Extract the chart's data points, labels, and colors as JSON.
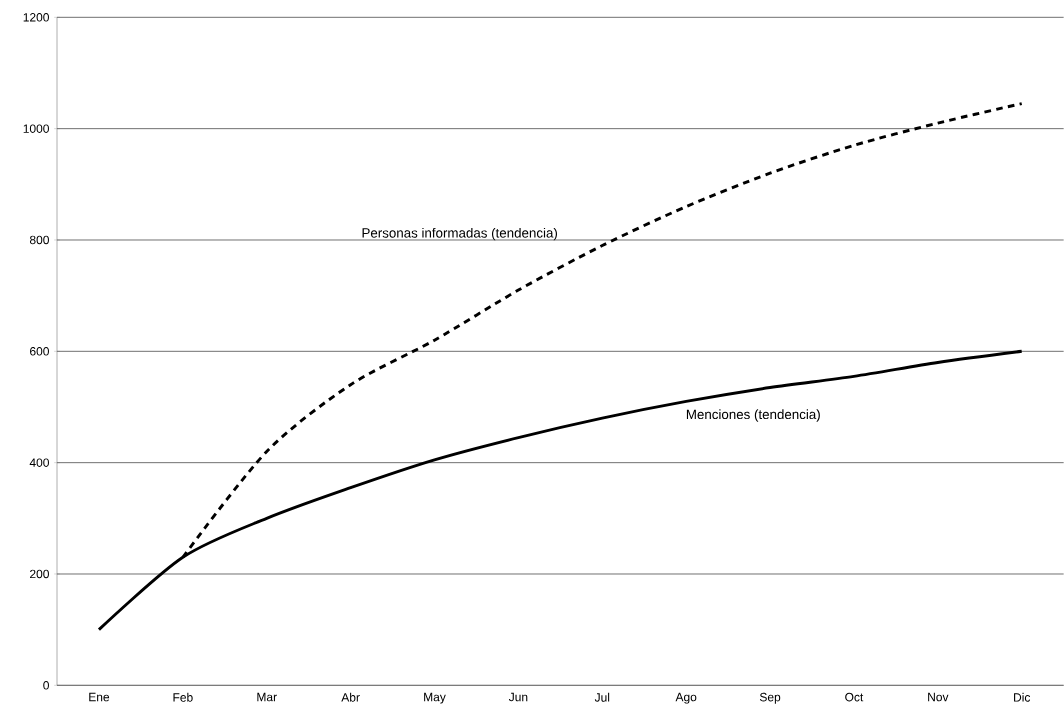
{
  "chart_data": {
    "type": "line",
    "categories": [
      "Ene",
      "Feb",
      "Mar",
      "Abr",
      "May",
      "Jun",
      "Jul",
      "Ago",
      "Sep",
      "Oct",
      "Nov",
      "Dic"
    ],
    "series": [
      {
        "name": "Personas informadas (tendencia)",
        "color": "#000000",
        "line_style": "dashed",
        "values": [
          null,
          230,
          420,
          540,
          620,
          710,
          790,
          860,
          920,
          970,
          1010,
          1045
        ]
      },
      {
        "name": "Menciones (tendencia)",
        "color": "#000000",
        "line_style": "solid",
        "values": [
          100,
          230,
          300,
          355,
          405,
          445,
          480,
          510,
          535,
          555,
          580,
          600
        ]
      }
    ],
    "ylim": [
      0,
      1200
    ],
    "yticks": [
      0,
      200,
      400,
      600,
      800,
      1000,
      1200
    ],
    "grid": "y",
    "legend": false,
    "marker": "none"
  }
}
